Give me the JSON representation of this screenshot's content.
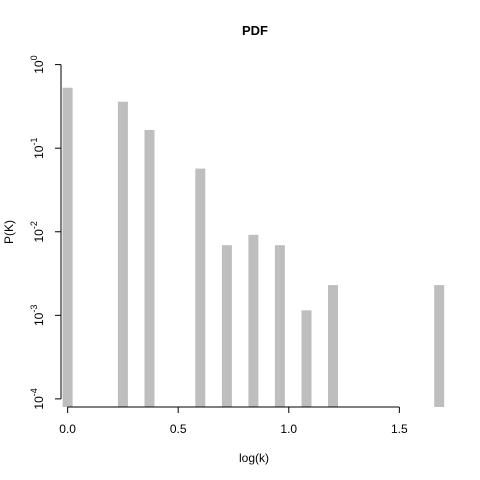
{
  "chart_data": {
    "type": "bar",
    "title": "PDF",
    "xlabel": "log(k)",
    "ylabel": "P(K)",
    "y_scale": "log",
    "xlim": [
      -0.03,
      1.72
    ],
    "ylim": [
      8e-05,
      1.2
    ],
    "bar_color": "#bebebe",
    "grid": false,
    "x_ticks": [
      {
        "value": 0.0,
        "label": "0.0"
      },
      {
        "value": 0.5,
        "label": "0.5"
      },
      {
        "value": 1.0,
        "label": "1.0"
      },
      {
        "value": 1.5,
        "label": "1.5"
      }
    ],
    "y_ticks": [
      {
        "value": 1,
        "base": "10",
        "exp": "0"
      },
      {
        "value": 0.1,
        "base": "10",
        "exp": "-1"
      },
      {
        "value": 0.01,
        "base": "10",
        "exp": "-2"
      },
      {
        "value": 0.001,
        "base": "10",
        "exp": "-3"
      },
      {
        "value": 0.0001,
        "base": "10",
        "exp": "-4"
      }
    ],
    "series": [
      {
        "x": [
          0.0,
          0.25,
          0.37,
          0.6,
          0.72,
          0.84,
          0.96,
          1.08,
          1.2,
          1.68
        ],
        "y": [
          0.53,
          0.36,
          0.165,
          0.057,
          0.0069,
          0.0092,
          0.0069,
          0.00115,
          0.0023,
          0.0023
        ]
      }
    ]
  }
}
